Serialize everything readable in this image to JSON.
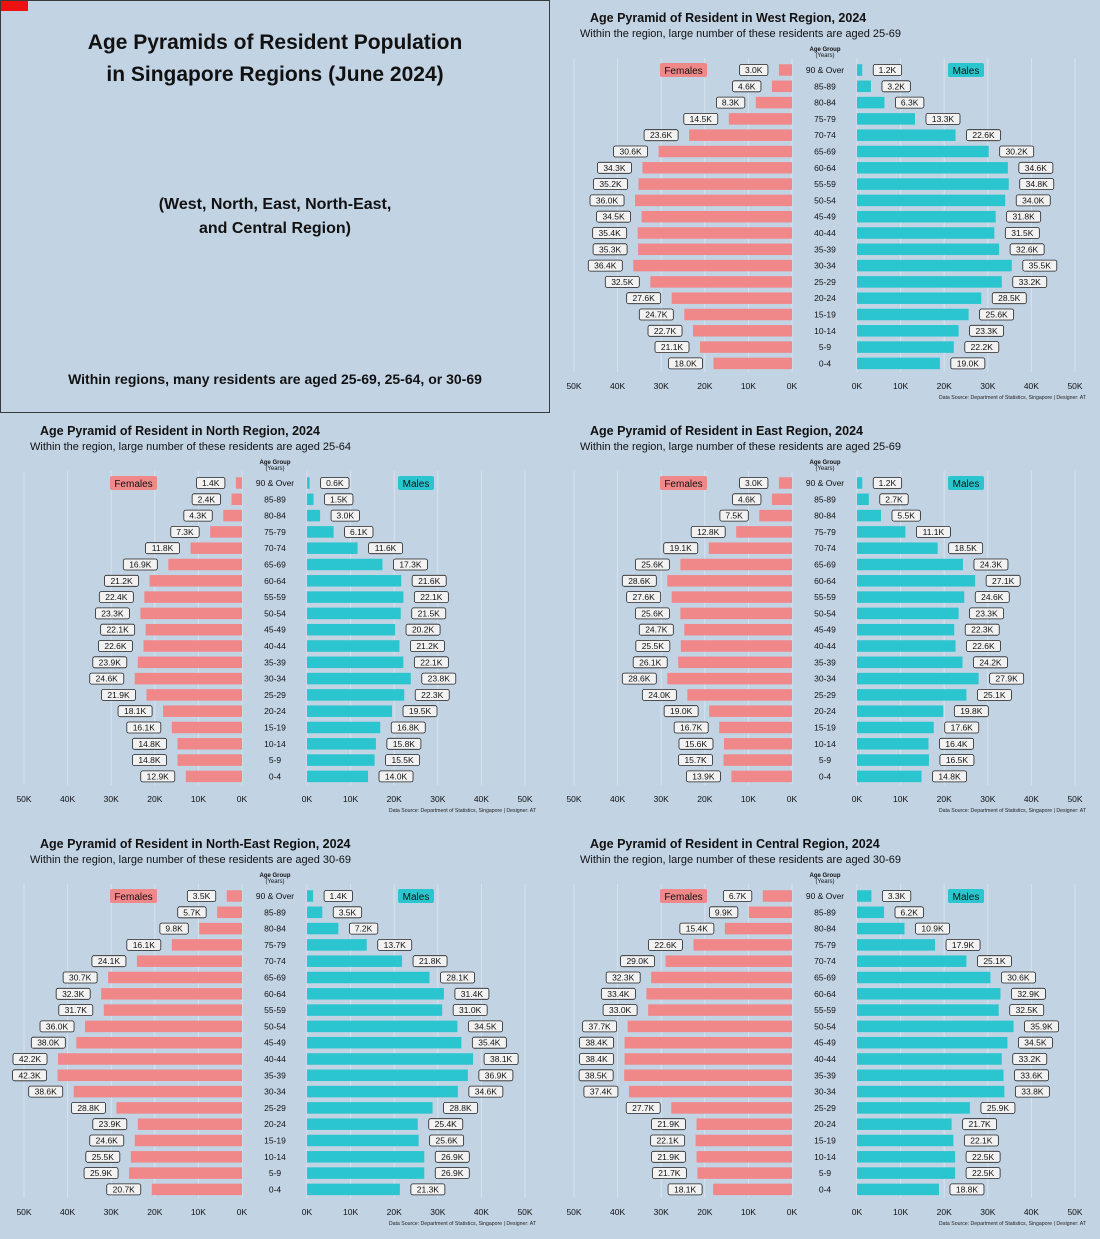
{
  "cover": {
    "title_line1": "Age Pyramids of Resident Population",
    "title_line2": "in Singapore Regions (June 2024)",
    "subtitle_line1": "(West, North, East, North-East,",
    "subtitle_line2": "and Central Region)",
    "note": "Within regions, many residents are aged 25-69, 25-64, or 30-69"
  },
  "colors": {
    "background": "#c2d3e4",
    "females": "#f0888a",
    "males": "#2ac5cf",
    "cover_accent": "#ee1111"
  },
  "chart_data": [
    {
      "type": "bar",
      "title": "Age Pyramid of Resident in West Region, 2024",
      "subtitle": "Within the region, large number of these residents are aged 25-69",
      "axis_header_line1": "Age Group",
      "axis_header_line2": "(Years)",
      "categories": [
        "90 & Over",
        "85-89",
        "80-84",
        "75-79",
        "70-74",
        "65-69",
        "60-64",
        "55-59",
        "50-54",
        "45-49",
        "40-44",
        "35-39",
        "30-34",
        "25-29",
        "20-24",
        "15-19",
        "10-14",
        "5-9",
        "0-4"
      ],
      "series": [
        {
          "name": "Females",
          "values": [
            3.0,
            4.6,
            8.3,
            14.5,
            23.6,
            30.6,
            34.3,
            35.2,
            36.0,
            34.5,
            35.4,
            35.3,
            36.4,
            32.5,
            27.6,
            24.7,
            22.7,
            21.1,
            18.0
          ]
        },
        {
          "name": "Males",
          "values": [
            1.2,
            3.2,
            6.3,
            13.3,
            22.6,
            30.2,
            34.6,
            34.8,
            34.0,
            31.8,
            31.5,
            32.6,
            35.5,
            33.2,
            28.5,
            25.6,
            23.3,
            22.2,
            19.0
          ]
        }
      ],
      "unit": "K",
      "xlim": [
        0,
        50
      ],
      "ticks": [
        "50K",
        "40K",
        "30K",
        "20K",
        "10K",
        "0K"
      ],
      "source": "Data Source: Department of Statistics, Singapore | Designer: AT"
    },
    {
      "type": "bar",
      "title": "Age Pyramid of Resident in North Region, 2024",
      "subtitle": "Within the region, large number of these residents are aged 25-64",
      "axis_header_line1": "Age Group",
      "axis_header_line2": "(Years)",
      "categories": [
        "90 & Over",
        "85-89",
        "80-84",
        "75-79",
        "70-74",
        "65-69",
        "60-64",
        "55-59",
        "50-54",
        "45-49",
        "40-44",
        "35-39",
        "30-34",
        "25-29",
        "20-24",
        "15-19",
        "10-14",
        "5-9",
        "0-4"
      ],
      "series": [
        {
          "name": "Females",
          "values": [
            1.4,
            2.4,
            4.3,
            7.3,
            11.8,
            16.9,
            21.2,
            22.4,
            23.3,
            22.1,
            22.6,
            23.9,
            24.6,
            21.9,
            18.1,
            16.1,
            14.8,
            14.8,
            12.9
          ]
        },
        {
          "name": "Males",
          "values": [
            0.6,
            1.5,
            3.0,
            6.1,
            11.6,
            17.3,
            21.6,
            22.1,
            21.5,
            20.2,
            21.2,
            22.1,
            23.8,
            22.3,
            19.5,
            16.8,
            15.8,
            15.5,
            14.0
          ]
        }
      ],
      "unit": "K",
      "xlim": [
        0,
        50
      ],
      "ticks": [
        "50K",
        "40K",
        "30K",
        "20K",
        "10K",
        "0K"
      ],
      "source": "Data Source: Department of Statistics, Singapore | Designer: AT"
    },
    {
      "type": "bar",
      "title": "Age Pyramid of Resident in East Region, 2024",
      "subtitle": "Within the region, large number of these residents are aged 25-69",
      "axis_header_line1": "Age Group",
      "axis_header_line2": "(Years)",
      "categories": [
        "90 & Over",
        "85-89",
        "80-84",
        "75-79",
        "70-74",
        "65-69",
        "60-64",
        "55-59",
        "50-54",
        "45-49",
        "40-44",
        "35-39",
        "30-34",
        "25-29",
        "20-24",
        "15-19",
        "10-14",
        "5-9",
        "0-4"
      ],
      "series": [
        {
          "name": "Females",
          "values": [
            3.0,
            4.6,
            7.5,
            12.8,
            19.1,
            25.6,
            28.6,
            27.6,
            25.6,
            24.7,
            25.5,
            26.1,
            28.6,
            24.0,
            19.0,
            16.7,
            15.6,
            15.7,
            13.9
          ]
        },
        {
          "name": "Males",
          "values": [
            1.2,
            2.7,
            5.5,
            11.1,
            18.5,
            24.3,
            27.1,
            24.6,
            23.3,
            22.3,
            22.6,
            24.2,
            27.9,
            25.1,
            19.8,
            17.6,
            16.4,
            16.5,
            14.8
          ]
        }
      ],
      "unit": "K",
      "xlim": [
        0,
        50
      ],
      "ticks": [
        "50K",
        "40K",
        "30K",
        "20K",
        "10K",
        "0K"
      ],
      "source": "Data Source: Department of Statistics, Singapore | Designer: AT"
    },
    {
      "type": "bar",
      "title": "Age Pyramid of Resident in North-East Region, 2024",
      "subtitle": "Within the region, large number of these residents are aged 30-69",
      "axis_header_line1": "Age Group",
      "axis_header_line2": "(Years)",
      "categories": [
        "90 & Over",
        "85-89",
        "80-84",
        "75-79",
        "70-74",
        "65-69",
        "60-64",
        "55-59",
        "50-54",
        "45-49",
        "40-44",
        "35-39",
        "30-34",
        "25-29",
        "20-24",
        "15-19",
        "10-14",
        "5-9",
        "0-4"
      ],
      "series": [
        {
          "name": "Females",
          "values": [
            3.5,
            5.7,
            9.8,
            16.1,
            24.1,
            30.7,
            32.3,
            31.7,
            36.0,
            38.0,
            42.2,
            42.3,
            38.6,
            28.8,
            23.9,
            24.6,
            25.5,
            25.9,
            20.7
          ]
        },
        {
          "name": "Males",
          "values": [
            1.4,
            3.5,
            7.2,
            13.7,
            21.8,
            28.1,
            31.4,
            31.0,
            34.5,
            35.4,
            38.1,
            36.9,
            34.6,
            28.8,
            25.4,
            25.6,
            26.9,
            26.9,
            21.3
          ]
        }
      ],
      "unit": "K",
      "xlim": [
        0,
        50
      ],
      "ticks": [
        "50K",
        "40K",
        "30K",
        "20K",
        "10K",
        "0K"
      ],
      "source": "Data Source: Department of Statistics, Singapore | Designer: AT"
    },
    {
      "type": "bar",
      "title": "Age Pyramid of Resident in Central Region, 2024",
      "subtitle": "Within the region, large number of these residents are aged 30-69",
      "axis_header_line1": "Age Group",
      "axis_header_line2": "(Years)",
      "categories": [
        "90 & Over",
        "85-89",
        "80-84",
        "75-79",
        "70-74",
        "65-69",
        "60-64",
        "55-59",
        "50-54",
        "45-49",
        "40-44",
        "35-39",
        "30-34",
        "25-29",
        "20-24",
        "15-19",
        "10-14",
        "5-9",
        "0-4"
      ],
      "series": [
        {
          "name": "Females",
          "values": [
            6.7,
            9.9,
            15.4,
            22.6,
            29.0,
            32.3,
            33.4,
            33.0,
            37.7,
            38.4,
            38.4,
            38.5,
            37.4,
            27.7,
            21.9,
            22.1,
            21.9,
            21.7,
            18.1
          ]
        },
        {
          "name": "Males",
          "values": [
            3.3,
            6.2,
            10.9,
            17.9,
            25.1,
            30.6,
            32.9,
            32.5,
            35.9,
            34.5,
            33.2,
            33.6,
            33.8,
            25.9,
            21.7,
            22.1,
            22.5,
            22.5,
            18.8
          ]
        }
      ],
      "unit": "K",
      "xlim": [
        0,
        50
      ],
      "ticks": [
        "50K",
        "40K",
        "30K",
        "20K",
        "10K",
        "0K"
      ],
      "source": "Data Source: Department of Statistics, Singapore | Designer: AT"
    }
  ]
}
